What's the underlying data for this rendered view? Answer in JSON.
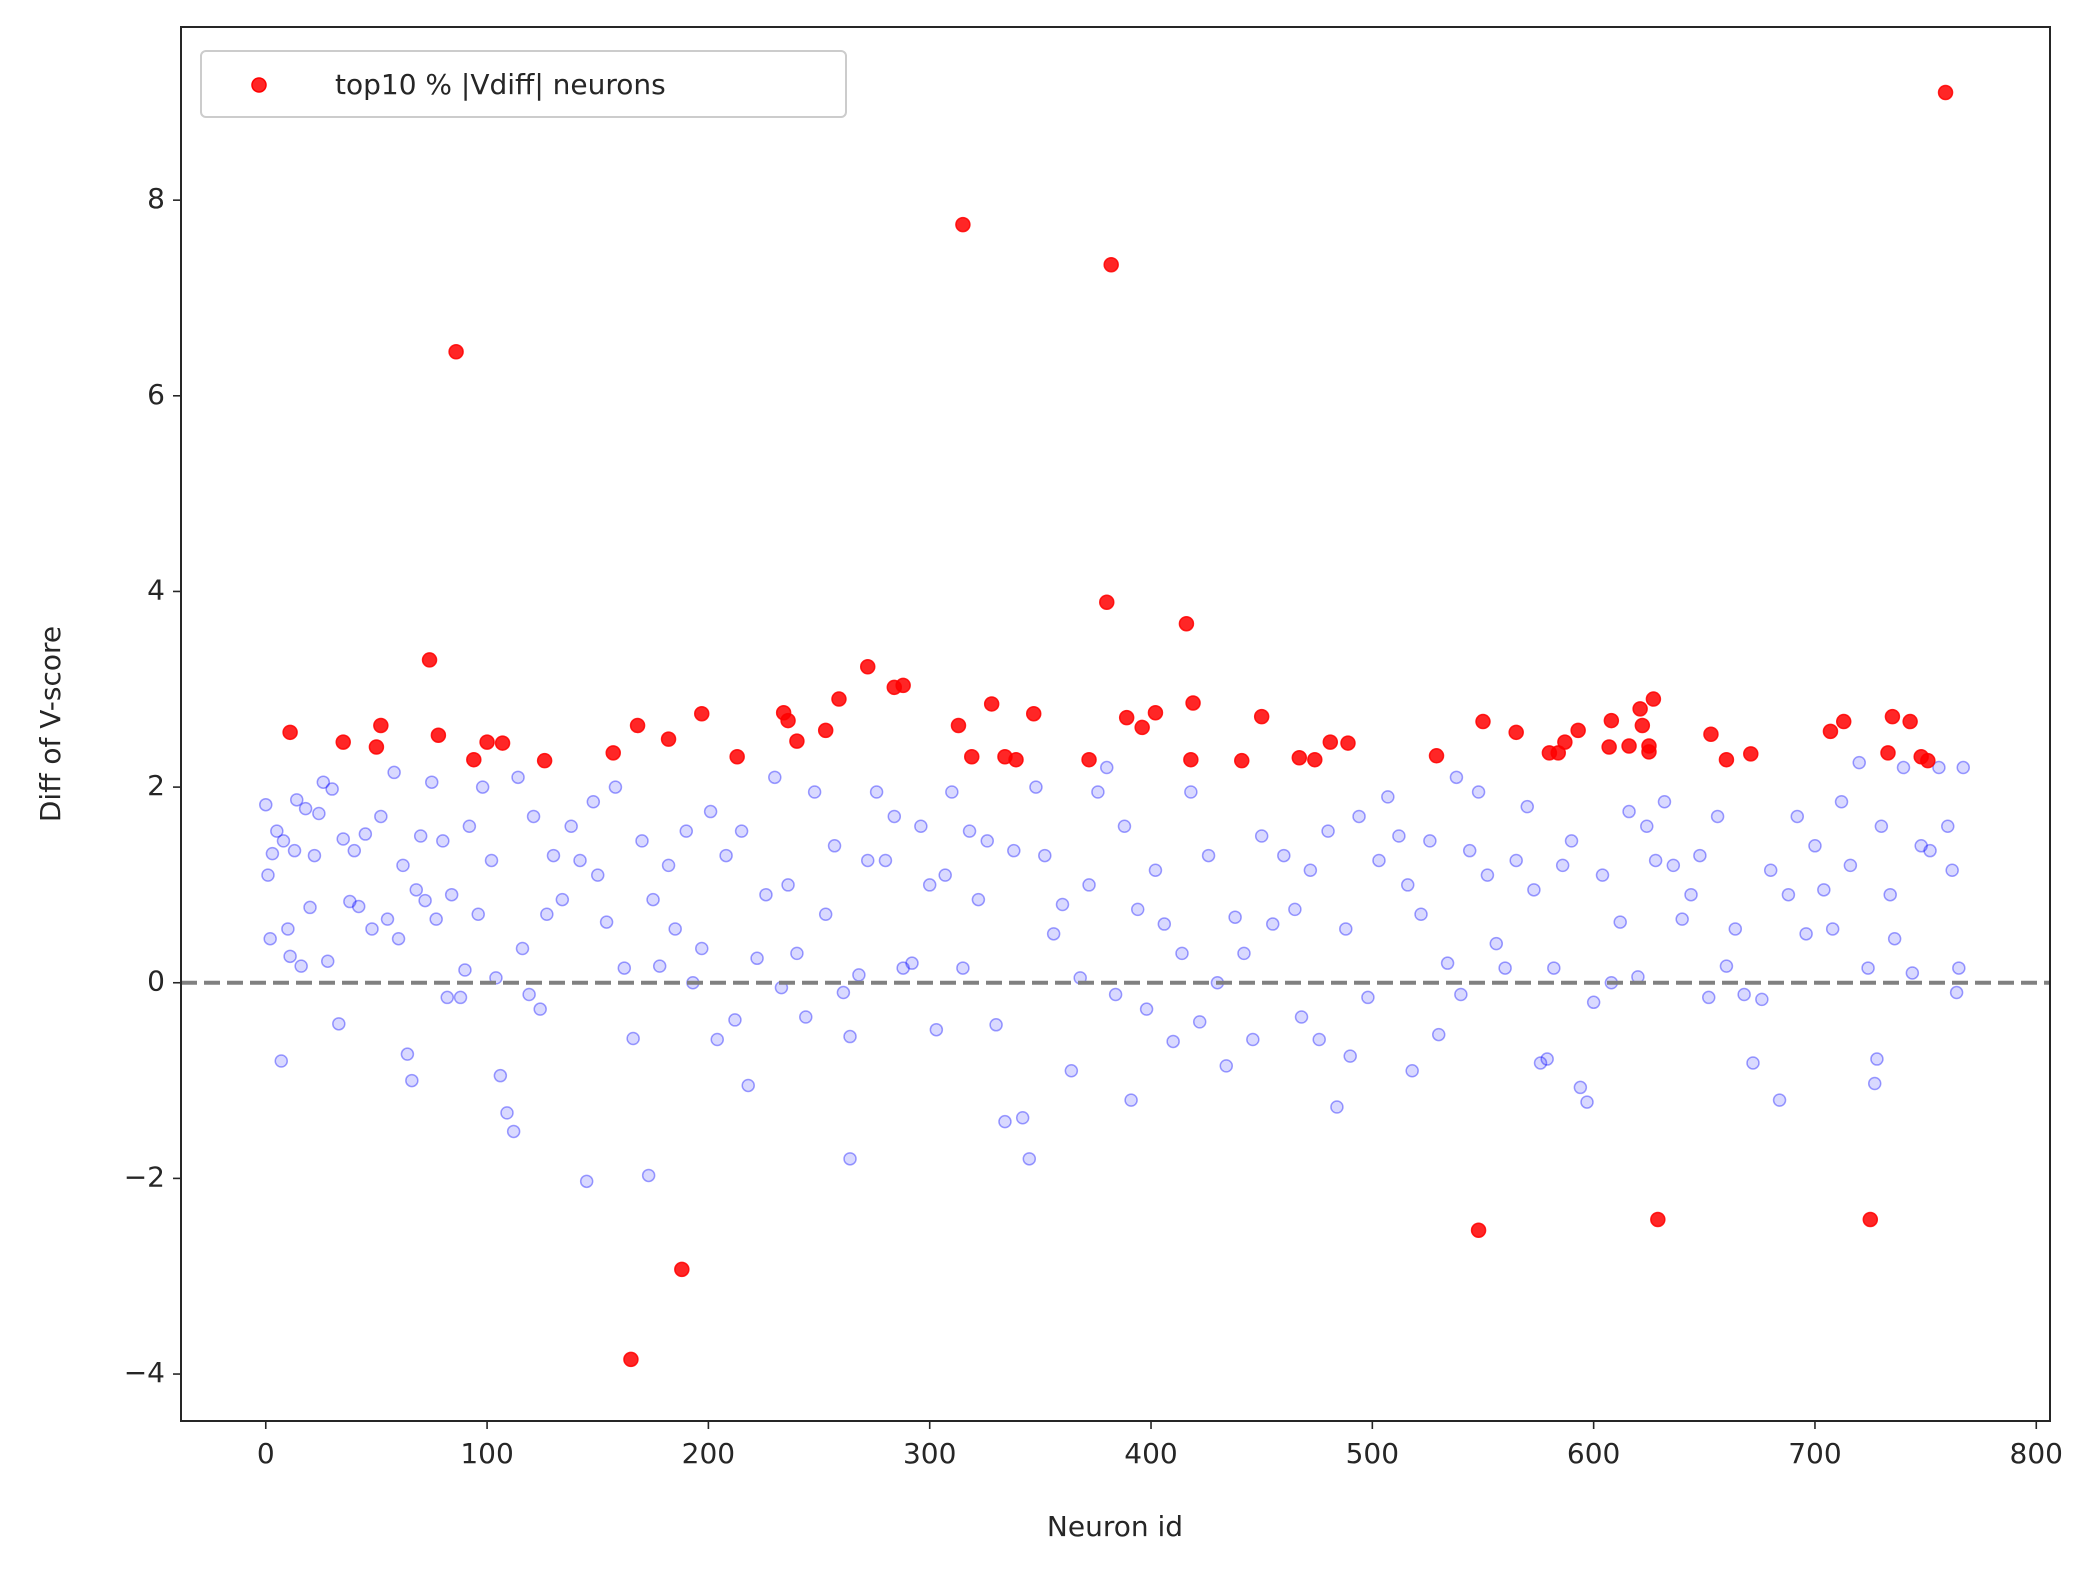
{
  "chart_data": {
    "type": "scatter",
    "xlabel": "Neuron id",
    "ylabel": "Diff of V-score",
    "xlim": [
      -38.3,
      806.2
    ],
    "ylim": [
      -4.48,
      9.77
    ],
    "xticks": [
      0,
      100,
      200,
      300,
      400,
      500,
      600,
      700,
      800
    ],
    "yticks": [
      {
        "value": -4,
        "label": "−4"
      },
      {
        "value": -2,
        "label": "−2"
      },
      0,
      2,
      4,
      6,
      8
    ],
    "hline": 0,
    "hline_color": "#808080",
    "legend": "upper left",
    "series": [
      {
        "name": "top10 % |Vdiff| neurons",
        "color": "red",
        "alpha": 0.85,
        "x": [
          11,
          35,
          50,
          52,
          74,
          78,
          86,
          94,
          100,
          107,
          126,
          157,
          165,
          168,
          182,
          188,
          197,
          213,
          234,
          236,
          240,
          253,
          259,
          272,
          284,
          288,
          313,
          315,
          319,
          328,
          334,
          339,
          347,
          372,
          382,
          380,
          389,
          396,
          402,
          416,
          418,
          419,
          441,
          450,
          467,
          474,
          481,
          489,
          529,
          548,
          550,
          565,
          580,
          584,
          587,
          593,
          608,
          607,
          616,
          621,
          622,
          625,
          625,
          627,
          629,
          653,
          660,
          671,
          707,
          713,
          725,
          733,
          735,
          743,
          748,
          751,
          759
        ],
        "values": [
          2.56,
          2.46,
          2.41,
          2.63,
          3.3,
          2.53,
          6.45,
          2.28,
          2.46,
          2.45,
          2.27,
          2.35,
          -3.85,
          2.63,
          2.49,
          -2.93,
          2.75,
          2.31,
          2.76,
          2.68,
          2.47,
          2.58,
          2.9,
          3.23,
          3.02,
          3.04,
          2.63,
          7.75,
          2.31,
          2.85,
          2.31,
          2.28,
          2.75,
          2.28,
          7.34,
          3.89,
          2.71,
          2.61,
          2.76,
          3.67,
          2.28,
          2.86,
          2.27,
          2.72,
          2.3,
          2.28,
          2.46,
          2.45,
          2.32,
          -2.53,
          2.67,
          2.56,
          2.35,
          2.35,
          2.46,
          2.58,
          2.68,
          2.41,
          2.42,
          2.8,
          2.63,
          2.36,
          2.42,
          2.9,
          -2.42,
          2.54,
          2.28,
          2.34,
          2.57,
          2.67,
          -2.42,
          2.35,
          2.72,
          2.67,
          2.31,
          2.27,
          9.1
        ]
      },
      {
        "color": "blue",
        "alpha": 0.15,
        "x": [
          0,
          1,
          2,
          3,
          5,
          7,
          8,
          10,
          11,
          13,
          14,
          16,
          18,
          20,
          22,
          24,
          26,
          28,
          30,
          33,
          35,
          38,
          40,
          42,
          45,
          48,
          52,
          55,
          58,
          60,
          62,
          64,
          66,
          68,
          70,
          72,
          75,
          77,
          80,
          82,
          84,
          88,
          90,
          92,
          96,
          98,
          102,
          104,
          106,
          109,
          112,
          114,
          116,
          119,
          121,
          124,
          127,
          130,
          134,
          138,
          142,
          145,
          148,
          150,
          154,
          158,
          162,
          166,
          170,
          173,
          175,
          178,
          182,
          185,
          190,
          193,
          197,
          201,
          204,
          208,
          212,
          215,
          218,
          222,
          226,
          230,
          233,
          236,
          240,
          244,
          248,
          253,
          257,
          261,
          264,
          264,
          268,
          272,
          276,
          280,
          284,
          288,
          292,
          296,
          300,
          303,
          307,
          310,
          315,
          318,
          322,
          326,
          330,
          334,
          338,
          342,
          345,
          348,
          352,
          356,
          360,
          364,
          368,
          372,
          376,
          380,
          384,
          388,
          391,
          394,
          398,
          402,
          406,
          410,
          414,
          418,
          422,
          426,
          430,
          434,
          438,
          442,
          446,
          450,
          455,
          460,
          465,
          468,
          472,
          476,
          480,
          484,
          488,
          490,
          494,
          498,
          503,
          507,
          512,
          516,
          518,
          522,
          526,
          530,
          534,
          538,
          540,
          544,
          548,
          552,
          556,
          560,
          565,
          570,
          573,
          576,
          579,
          582,
          586,
          590,
          594,
          597,
          600,
          604,
          608,
          612,
          616,
          620,
          624,
          628,
          632,
          636,
          640,
          644,
          648,
          652,
          656,
          660,
          664,
          668,
          672,
          676,
          680,
          684,
          688,
          692,
          696,
          700,
          704,
          708,
          712,
          716,
          720,
          724,
          727,
          728,
          730,
          734,
          736,
          740,
          744,
          748,
          752,
          756,
          760,
          762,
          764,
          765,
          767
        ],
        "values": [
          1.82,
          1.1,
          0.45,
          1.32,
          1.55,
          -0.8,
          1.45,
          0.55,
          0.27,
          1.35,
          1.87,
          0.17,
          1.78,
          0.77,
          1.3,
          1.73,
          2.05,
          0.22,
          1.98,
          -0.42,
          1.47,
          0.83,
          1.35,
          0.78,
          1.52,
          0.55,
          1.7,
          0.65,
          2.15,
          0.45,
          1.2,
          -0.73,
          -1.0,
          0.95,
          1.5,
          0.84,
          2.05,
          0.65,
          1.45,
          -0.15,
          0.9,
          -0.15,
          0.13,
          1.6,
          0.7,
          2.0,
          1.25,
          0.05,
          -0.95,
          -1.33,
          -1.52,
          2.1,
          0.35,
          -0.12,
          1.7,
          -0.27,
          0.7,
          1.3,
          0.85,
          1.6,
          1.25,
          -2.03,
          1.85,
          1.1,
          0.62,
          2.0,
          0.15,
          -0.57,
          1.45,
          -1.97,
          0.85,
          0.17,
          1.2,
          0.55,
          1.55,
          0.0,
          0.35,
          1.75,
          -0.58,
          1.3,
          -0.38,
          1.55,
          -1.05,
          0.25,
          0.9,
          2.1,
          -0.05,
          1.0,
          0.3,
          -0.35,
          1.95,
          0.7,
          1.4,
          -0.1,
          -0.55,
          -1.8,
          0.08,
          1.25,
          1.95,
          1.25,
          1.7,
          0.15,
          0.2,
          1.6,
          1.0,
          -0.48,
          1.1,
          1.95,
          0.15,
          1.55,
          0.85,
          1.45,
          -0.43,
          -1.42,
          1.35,
          -1.38,
          -1.8,
          2.0,
          1.3,
          0.5,
          0.8,
          -0.9,
          0.05,
          1.0,
          1.95,
          2.2,
          -0.12,
          1.6,
          -1.2,
          0.75,
          -0.27,
          1.15,
          0.6,
          -0.6,
          0.3,
          1.95,
          -0.4,
          1.3,
          0.0,
          -0.85,
          0.67,
          0.3,
          -0.58,
          1.5,
          0.6,
          1.3,
          0.75,
          -0.35,
          1.15,
          -0.58,
          1.55,
          -1.27,
          0.55,
          -0.75,
          1.7,
          -0.15,
          1.25,
          1.9,
          1.5,
          1.0,
          -0.9,
          0.7,
          1.45,
          -0.53,
          0.2,
          2.1,
          -0.12,
          1.35,
          1.95,
          1.1,
          0.4,
          0.15,
          1.25,
          1.8,
          0.95,
          -0.82,
          -0.78,
          0.15,
          1.2,
          1.45,
          -1.07,
          -1.22,
          -0.2,
          1.1,
          0.0,
          0.62,
          1.75,
          0.06,
          1.6,
          1.25,
          1.85,
          1.2,
          0.65,
          0.9,
          1.3,
          -0.15,
          1.7,
          0.17,
          0.55,
          -0.12,
          -0.82,
          -0.17,
          1.15,
          -1.2,
          0.9,
          1.7,
          0.5,
          1.4,
          0.95,
          0.55,
          1.85,
          1.2,
          2.25,
          0.15,
          -1.03,
          -0.78,
          1.6,
          0.9,
          0.45,
          2.2,
          0.1,
          1.4,
          1.35,
          2.2,
          1.6,
          1.15,
          -0.1,
          0.15,
          2.2
        ]
      }
    ]
  }
}
